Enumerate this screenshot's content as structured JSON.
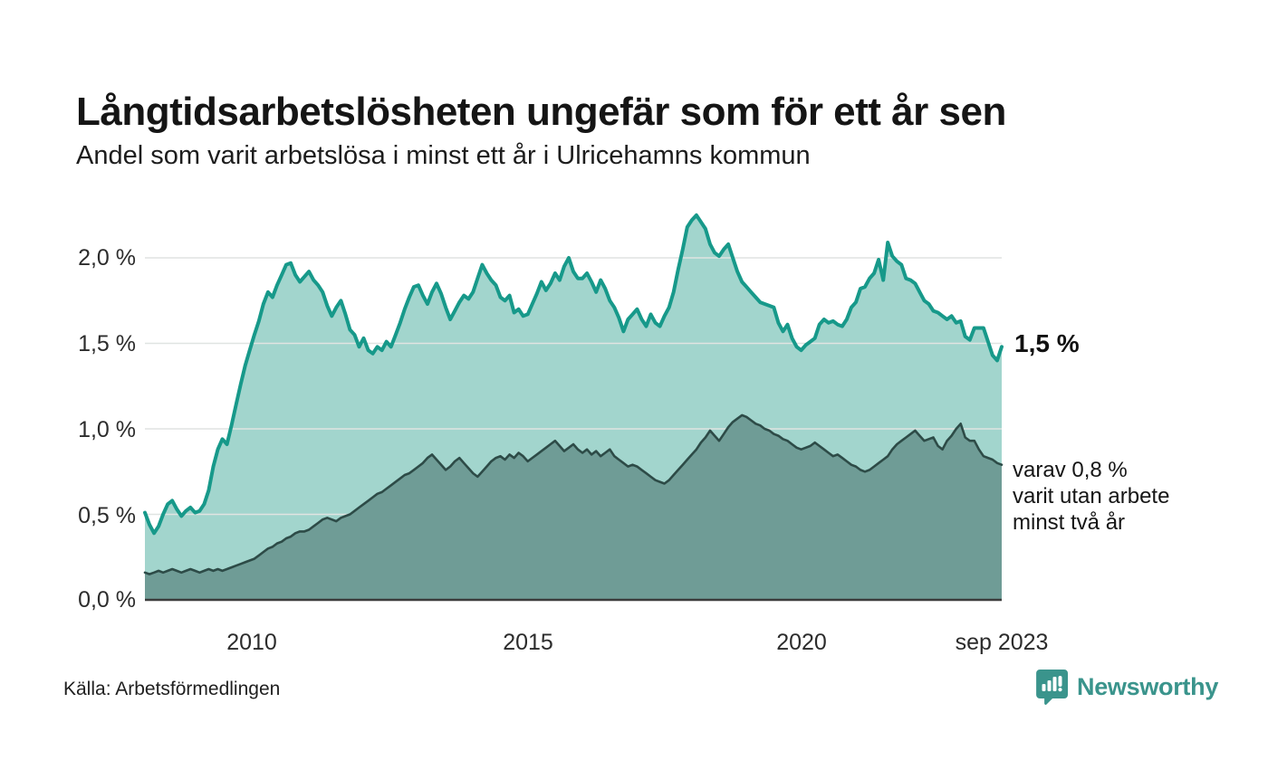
{
  "title": "Långtidsarbetslösheten ungefär som för ett år sen",
  "subtitle": "Andel som varit arbetslösa i minst ett år i Ulricehamns kommun",
  "source": "Källa: Arbetsförmedlingen",
  "logo": {
    "name": "Newsworthy"
  },
  "annotations": {
    "latest_total": "1,5 %",
    "two_year_note": "varav 0,8 %\nvarit utan arbete\nminst två år"
  },
  "colors": {
    "upper_line": "#17998a",
    "upper_fill": "#a2d5cd",
    "lower_line": "#2d4b47",
    "lower_fill": "#6f9c96",
    "gridline": "#e0e4e2",
    "baseline": "#3c3c3c",
    "logo_teal": "#3a948c"
  },
  "chart_data": {
    "type": "area",
    "unit": "%",
    "frequency": "monthly",
    "x_start": "2008-01",
    "x_end": "2023-09",
    "x_tick_labels": [
      "2010",
      "2015",
      "2020",
      "sep 2023"
    ],
    "y_tick_labels": [
      "0,0 %",
      "0,5 %",
      "1,0 %",
      "1,5 %",
      "2,0 %"
    ],
    "y_ticks": [
      0,
      0.5,
      1.0,
      1.5,
      2.0
    ],
    "ylim": [
      0,
      2.35
    ],
    "grid": "horizontal",
    "series": [
      {
        "name": "Andel arbetslösa minst ett år",
        "latest_label": "1,5 %",
        "values": [
          0.51,
          0.44,
          0.39,
          0.43,
          0.5,
          0.56,
          0.58,
          0.53,
          0.49,
          0.52,
          0.54,
          0.51,
          0.52,
          0.56,
          0.64,
          0.78,
          0.88,
          0.94,
          0.91,
          1.02,
          1.14,
          1.26,
          1.37,
          1.46,
          1.55,
          1.63,
          1.73,
          1.8,
          1.77,
          1.84,
          1.9,
          1.96,
          1.97,
          1.9,
          1.86,
          1.89,
          1.92,
          1.87,
          1.84,
          1.8,
          1.72,
          1.66,
          1.71,
          1.75,
          1.67,
          1.58,
          1.55,
          1.48,
          1.53,
          1.46,
          1.44,
          1.48,
          1.46,
          1.51,
          1.48,
          1.55,
          1.62,
          1.7,
          1.77,
          1.83,
          1.84,
          1.78,
          1.73,
          1.8,
          1.85,
          1.79,
          1.71,
          1.64,
          1.69,
          1.74,
          1.78,
          1.76,
          1.8,
          1.88,
          1.96,
          1.91,
          1.87,
          1.84,
          1.77,
          1.75,
          1.78,
          1.68,
          1.7,
          1.66,
          1.67,
          1.73,
          1.79,
          1.86,
          1.81,
          1.85,
          1.91,
          1.87,
          1.95,
          2.0,
          1.92,
          1.88,
          1.88,
          1.91,
          1.86,
          1.8,
          1.87,
          1.82,
          1.75,
          1.71,
          1.65,
          1.57,
          1.64,
          1.67,
          1.7,
          1.64,
          1.6,
          1.67,
          1.62,
          1.6,
          1.66,
          1.71,
          1.8,
          1.93,
          2.05,
          2.18,
          2.22,
          2.25,
          2.21,
          2.17,
          2.08,
          2.03,
          2.01,
          2.05,
          2.08,
          2.0,
          1.92,
          1.86,
          1.83,
          1.8,
          1.77,
          1.74,
          1.73,
          1.72,
          1.71,
          1.62,
          1.57,
          1.61,
          1.53,
          1.48,
          1.46,
          1.49,
          1.51,
          1.53,
          1.61,
          1.64,
          1.62,
          1.63,
          1.61,
          1.6,
          1.64,
          1.71,
          1.74,
          1.82,
          1.83,
          1.88,
          1.91,
          1.99,
          1.87,
          2.09,
          2.01,
          1.98,
          1.96,
          1.88,
          1.87,
          1.85,
          1.8,
          1.75,
          1.73,
          1.69,
          1.68,
          1.66,
          1.64,
          1.66,
          1.62,
          1.63,
          1.54,
          1.52,
          1.59,
          1.59,
          1.59,
          1.51,
          1.43,
          1.4,
          1.48
        ]
      },
      {
        "name": "Andel arbetslösa minst två år",
        "latest_label": "0,8 %",
        "values": [
          0.16,
          0.15,
          0.16,
          0.17,
          0.16,
          0.17,
          0.18,
          0.17,
          0.16,
          0.17,
          0.18,
          0.17,
          0.16,
          0.17,
          0.18,
          0.17,
          0.18,
          0.17,
          0.18,
          0.19,
          0.2,
          0.21,
          0.22,
          0.23,
          0.24,
          0.26,
          0.28,
          0.3,
          0.31,
          0.33,
          0.34,
          0.36,
          0.37,
          0.39,
          0.4,
          0.4,
          0.41,
          0.43,
          0.45,
          0.47,
          0.48,
          0.47,
          0.46,
          0.48,
          0.49,
          0.5,
          0.52,
          0.54,
          0.56,
          0.58,
          0.6,
          0.62,
          0.63,
          0.65,
          0.67,
          0.69,
          0.71,
          0.73,
          0.74,
          0.76,
          0.78,
          0.8,
          0.83,
          0.85,
          0.82,
          0.79,
          0.76,
          0.78,
          0.81,
          0.83,
          0.8,
          0.77,
          0.74,
          0.72,
          0.75,
          0.78,
          0.81,
          0.83,
          0.84,
          0.82,
          0.85,
          0.83,
          0.86,
          0.84,
          0.81,
          0.83,
          0.85,
          0.87,
          0.89,
          0.91,
          0.93,
          0.9,
          0.87,
          0.89,
          0.91,
          0.88,
          0.86,
          0.88,
          0.85,
          0.87,
          0.84,
          0.86,
          0.88,
          0.84,
          0.82,
          0.8,
          0.78,
          0.79,
          0.78,
          0.76,
          0.74,
          0.72,
          0.7,
          0.69,
          0.68,
          0.7,
          0.73,
          0.76,
          0.79,
          0.82,
          0.85,
          0.88,
          0.92,
          0.95,
          0.99,
          0.96,
          0.93,
          0.97,
          1.01,
          1.04,
          1.06,
          1.08,
          1.07,
          1.05,
          1.03,
          1.02,
          1.0,
          0.99,
          0.97,
          0.96,
          0.94,
          0.93,
          0.91,
          0.89,
          0.88,
          0.89,
          0.9,
          0.92,
          0.9,
          0.88,
          0.86,
          0.84,
          0.85,
          0.83,
          0.81,
          0.79,
          0.78,
          0.76,
          0.75,
          0.76,
          0.78,
          0.8,
          0.82,
          0.84,
          0.88,
          0.91,
          0.93,
          0.95,
          0.97,
          0.99,
          0.96,
          0.93,
          0.94,
          0.95,
          0.9,
          0.88,
          0.93,
          0.96,
          1.0,
          1.03,
          0.95,
          0.93,
          0.93,
          0.88,
          0.84,
          0.83,
          0.82,
          0.8,
          0.79
        ]
      }
    ]
  }
}
